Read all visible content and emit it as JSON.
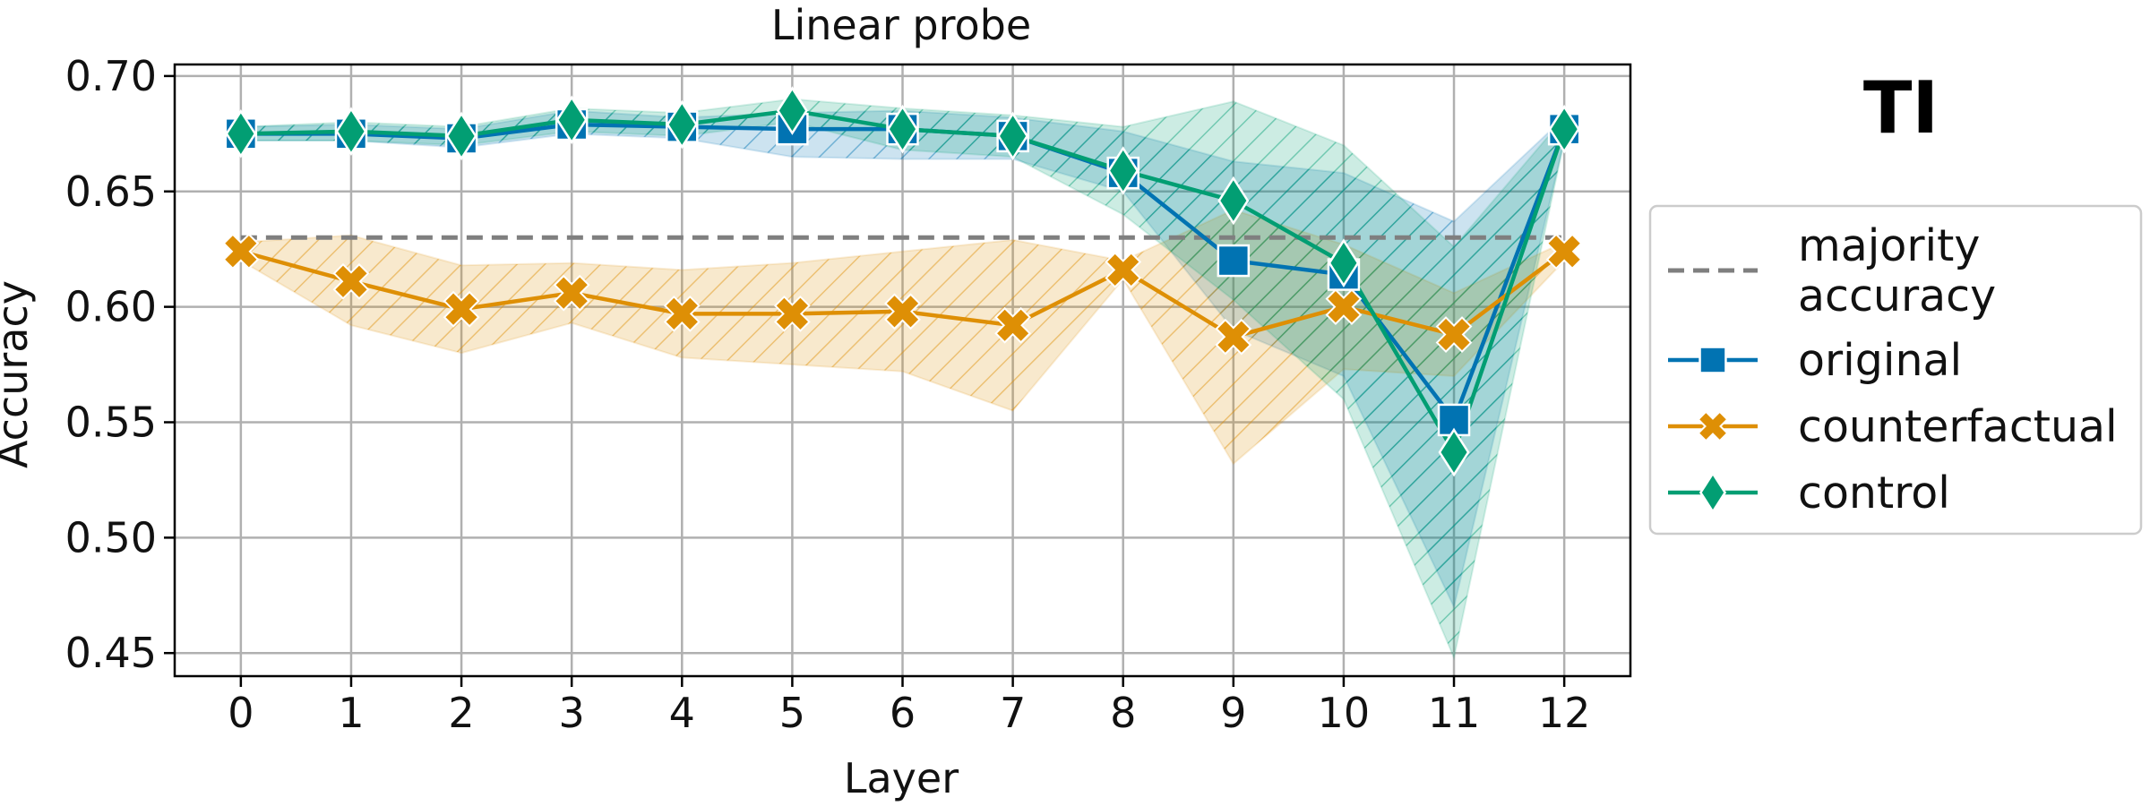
{
  "chart_data": {
    "type": "line",
    "title": "Linear probe",
    "side_label": "TI",
    "xlabel": "Layer",
    "ylabel": "Accuracy",
    "x": [
      0,
      1,
      2,
      3,
      4,
      5,
      6,
      7,
      8,
      9,
      10,
      11,
      12
    ],
    "xticks": [
      "0",
      "1",
      "2",
      "3",
      "4",
      "5",
      "6",
      "7",
      "8",
      "9",
      "10",
      "11",
      "12"
    ],
    "yticks": [
      "0.45",
      "0.50",
      "0.55",
      "0.60",
      "0.65",
      "0.70"
    ],
    "ylim": [
      0.44,
      0.705
    ],
    "xlim": [
      -0.6,
      12.6
    ],
    "grid": true,
    "legend_position": "right",
    "reference_line": {
      "name": "majority\naccuracy",
      "y": 0.63,
      "color": "#7f7f7f"
    },
    "series": [
      {
        "name": "original",
        "color": "#0173b2",
        "marker": "square",
        "values": [
          0.675,
          0.675,
          0.673,
          0.679,
          0.678,
          0.677,
          0.677,
          0.674,
          0.658,
          0.62,
          0.614,
          0.551,
          0.677
        ],
        "lower": [
          0.672,
          0.672,
          0.669,
          0.675,
          0.673,
          0.665,
          0.664,
          0.664,
          0.65,
          0.59,
          0.57,
          0.47,
          0.672
        ],
        "upper": [
          0.678,
          0.679,
          0.677,
          0.685,
          0.682,
          0.684,
          0.685,
          0.682,
          0.676,
          0.663,
          0.658,
          0.637,
          0.682
        ]
      },
      {
        "name": "counterfactual",
        "color": "#de8f05",
        "marker": "x",
        "values": [
          0.624,
          0.611,
          0.599,
          0.606,
          0.597,
          0.597,
          0.598,
          0.592,
          0.616,
          0.587,
          0.6,
          0.588,
          0.624
        ],
        "lower": [
          0.62,
          0.592,
          0.58,
          0.593,
          0.578,
          0.575,
          0.572,
          0.555,
          0.612,
          0.532,
          0.573,
          0.57,
          0.62
        ],
        "upper": [
          0.628,
          0.631,
          0.618,
          0.619,
          0.616,
          0.619,
          0.624,
          0.629,
          0.62,
          0.642,
          0.627,
          0.606,
          0.628
        ]
      },
      {
        "name": "control",
        "color": "#029e73",
        "marker": "diamond",
        "values": [
          0.675,
          0.676,
          0.674,
          0.681,
          0.679,
          0.685,
          0.677,
          0.674,
          0.659,
          0.646,
          0.619,
          0.537,
          0.677
        ],
        "lower": [
          0.672,
          0.672,
          0.67,
          0.676,
          0.674,
          0.68,
          0.668,
          0.665,
          0.64,
          0.603,
          0.56,
          0.448,
          0.672
        ],
        "upper": [
          0.678,
          0.68,
          0.678,
          0.686,
          0.684,
          0.69,
          0.686,
          0.683,
          0.678,
          0.689,
          0.67,
          0.626,
          0.682
        ]
      }
    ]
  }
}
